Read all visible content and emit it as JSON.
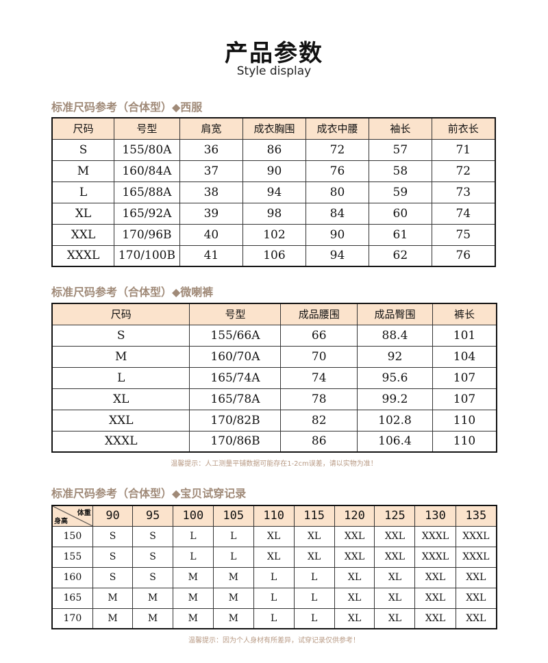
{
  "title": "产品参数",
  "subtitle": "Style display",
  "suit": {
    "heading": "标准尺码参考（合体型）◆西服",
    "headers": [
      "尺码",
      "号型",
      "肩宽",
      "成衣胸围",
      "成衣中腰",
      "袖长",
      "前衣长"
    ],
    "rows": [
      [
        "S",
        "155/80A",
        "36",
        "86",
        "72",
        "57",
        "71"
      ],
      [
        "M",
        "160/84A",
        "37",
        "90",
        "76",
        "58",
        "72"
      ],
      [
        "L",
        "165/88A",
        "38",
        "94",
        "80",
        "59",
        "73"
      ],
      [
        "XL",
        "165/92A",
        "39",
        "98",
        "84",
        "60",
        "74"
      ],
      [
        "XXL",
        "170/96B",
        "40",
        "102",
        "90",
        "61",
        "75"
      ],
      [
        "XXXL",
        "170/100B",
        "41",
        "106",
        "94",
        "62",
        "76"
      ]
    ]
  },
  "pants": {
    "heading": "标准尺码参考（合体型）◆微喇裤",
    "headers": [
      "尺码",
      "号型",
      "成品腰围",
      "成品臀围",
      "裤长"
    ],
    "rows": [
      [
        "S",
        "155/66A",
        "66",
        "88.4",
        "101"
      ],
      [
        "M",
        "160/70A",
        "70",
        "92",
        "104"
      ],
      [
        "L",
        "165/74A",
        "74",
        "95.6",
        "107"
      ],
      [
        "XL",
        "165/78A",
        "78",
        "99.2",
        "107"
      ],
      [
        "XXL",
        "170/82B",
        "82",
        "102.8",
        "110"
      ],
      [
        "XXXL",
        "170/86B",
        "86",
        "106.4",
        "110"
      ]
    ],
    "note": "温馨提示：人工测量平铺数据可能存在1-2cm误差，请以实物为准！"
  },
  "fit": {
    "heading": "标准尺码参考（合体型）◆宝贝试穿记录",
    "corner_top": "体重",
    "corner_bottom": "身高",
    "headers": [
      "90",
      "95",
      "100",
      "105",
      "110",
      "115",
      "120",
      "125",
      "130",
      "135"
    ],
    "rows": [
      [
        "150",
        "S",
        "S",
        "L",
        "L",
        "XL",
        "XL",
        "XXL",
        "XXL",
        "XXXL",
        "XXXL"
      ],
      [
        "155",
        "S",
        "S",
        "L",
        "L",
        "XL",
        "XL",
        "XXL",
        "XXL",
        "XXXL",
        "XXXL"
      ],
      [
        "160",
        "S",
        "S",
        "M",
        "M",
        "L",
        "L",
        "XL",
        "XL",
        "XXL",
        "XXL"
      ],
      [
        "165",
        "M",
        "M",
        "M",
        "M",
        "L",
        "L",
        "XL",
        "XL",
        "XXL",
        "XXL"
      ],
      [
        "170",
        "M",
        "M",
        "M",
        "M",
        "L",
        "L",
        "XL",
        "XL",
        "XXL",
        "XXL"
      ]
    ],
    "note": "温馨提示：因为个人身材有所差异，试穿记录仅供参考！"
  }
}
